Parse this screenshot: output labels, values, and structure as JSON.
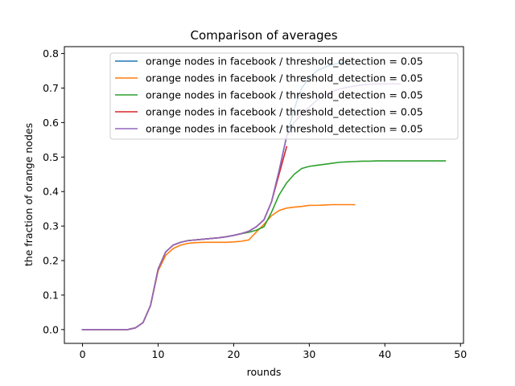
{
  "chart_data": {
    "type": "line",
    "title": "Comparison of averages",
    "xlabel": "rounds",
    "ylabel": "the fraction of orange nodes",
    "xlim": [
      -2.4,
      50.4
    ],
    "ylim": [
      -0.04,
      0.82
    ],
    "xticks": [
      0,
      10,
      20,
      30,
      40,
      50
    ],
    "yticks": [
      0.0,
      0.1,
      0.2,
      0.3,
      0.4,
      0.5,
      0.6,
      0.7,
      0.8
    ],
    "xtick_labels": [
      "0",
      "10",
      "20",
      "30",
      "40",
      "50"
    ],
    "ytick_labels": [
      "0.0",
      "0.1",
      "0.2",
      "0.3",
      "0.4",
      "0.5",
      "0.6",
      "0.7",
      "0.8"
    ],
    "grid": false,
    "legend_position": "top-right",
    "series": [
      {
        "name": "orange nodes in facebook / threshold_detection = 0.05",
        "color": "#1f77b4",
        "x": [
          0,
          1,
          2,
          3,
          4,
          5,
          6,
          7,
          8,
          9,
          10,
          11,
          12,
          13,
          14,
          15,
          16,
          17,
          18,
          19,
          20,
          21,
          22,
          23,
          24,
          25,
          26,
          27,
          28,
          29,
          30,
          31,
          32,
          33,
          34,
          35
        ],
        "y": [
          0,
          0,
          0,
          0,
          0,
          0,
          0,
          0.005,
          0.02,
          0.07,
          0.175,
          0.225,
          0.245,
          0.253,
          0.258,
          0.26,
          0.262,
          0.264,
          0.266,
          0.269,
          0.273,
          0.278,
          0.285,
          0.298,
          0.318,
          0.37,
          0.46,
          0.56,
          0.64,
          0.7,
          0.73,
          0.75,
          0.76,
          0.768,
          0.772,
          0.775
        ]
      },
      {
        "name": "orange nodes in facebook / threshold_detection = 0.05",
        "color": "#ff7f0e",
        "x": [
          0,
          1,
          2,
          3,
          4,
          5,
          6,
          7,
          8,
          9,
          10,
          11,
          12,
          13,
          14,
          15,
          16,
          17,
          18,
          19,
          20,
          21,
          22,
          23,
          24,
          25,
          26,
          27,
          28,
          29,
          30,
          31,
          32,
          33,
          34,
          35,
          36
        ],
        "y": [
          0,
          0,
          0,
          0,
          0,
          0,
          0,
          0.005,
          0.02,
          0.07,
          0.17,
          0.215,
          0.235,
          0.245,
          0.25,
          0.252,
          0.253,
          0.253,
          0.253,
          0.253,
          0.254,
          0.256,
          0.26,
          0.283,
          0.305,
          0.33,
          0.345,
          0.352,
          0.355,
          0.357,
          0.36,
          0.36,
          0.361,
          0.362,
          0.362,
          0.362,
          0.362
        ]
      },
      {
        "name": "orange nodes in facebook / threshold_detection = 0.05",
        "color": "#2ca02c",
        "x": [
          0,
          1,
          2,
          3,
          4,
          5,
          6,
          7,
          8,
          9,
          10,
          11,
          12,
          13,
          14,
          15,
          16,
          17,
          18,
          19,
          20,
          21,
          22,
          23,
          24,
          25,
          26,
          27,
          28,
          29,
          30,
          31,
          32,
          33,
          34,
          35,
          36,
          37,
          38,
          39,
          40,
          41,
          42,
          43,
          44,
          45,
          46,
          47,
          48
        ],
        "y": [
          0,
          0,
          0,
          0,
          0,
          0,
          0,
          0.005,
          0.02,
          0.07,
          0.175,
          0.225,
          0.245,
          0.253,
          0.258,
          0.26,
          0.262,
          0.264,
          0.266,
          0.269,
          0.273,
          0.278,
          0.282,
          0.288,
          0.298,
          0.34,
          0.39,
          0.425,
          0.45,
          0.467,
          0.473,
          0.476,
          0.479,
          0.482,
          0.485,
          0.486,
          0.487,
          0.488,
          0.488,
          0.489,
          0.489,
          0.489,
          0.489,
          0.489,
          0.489,
          0.489,
          0.489,
          0.489,
          0.489
        ]
      },
      {
        "name": "orange nodes in facebook / threshold_detection = 0.05",
        "color": "#d62728",
        "x": [
          0,
          1,
          2,
          3,
          4,
          5,
          6,
          7,
          8,
          9,
          10,
          11,
          12,
          13,
          14,
          15,
          16,
          17,
          18,
          19,
          20,
          21,
          22,
          23,
          24,
          25,
          26,
          27
        ],
        "y": [
          0,
          0,
          0,
          0,
          0,
          0,
          0,
          0.005,
          0.02,
          0.07,
          0.175,
          0.225,
          0.245,
          0.253,
          0.258,
          0.26,
          0.262,
          0.264,
          0.266,
          0.269,
          0.273,
          0.278,
          0.285,
          0.298,
          0.318,
          0.37,
          0.45,
          0.53
        ]
      },
      {
        "name": "orange nodes in facebook / threshold_detection = 0.05",
        "color": "#9467bd",
        "x": [
          0,
          1,
          2,
          3,
          4,
          5,
          6,
          7,
          8,
          9,
          10,
          11,
          12,
          13,
          14,
          15,
          16,
          17,
          18,
          19,
          20,
          21,
          22,
          23,
          24,
          25,
          26,
          27,
          28,
          29,
          30,
          31,
          32,
          33,
          34,
          35,
          36,
          37,
          38,
          39,
          40,
          41,
          42
        ],
        "y": [
          0,
          0,
          0,
          0,
          0,
          0,
          0,
          0.005,
          0.02,
          0.07,
          0.175,
          0.225,
          0.245,
          0.253,
          0.258,
          0.26,
          0.262,
          0.264,
          0.266,
          0.269,
          0.273,
          0.278,
          0.285,
          0.298,
          0.318,
          0.37,
          0.46,
          0.56,
          0.6,
          0.625,
          0.645,
          0.665,
          0.68,
          0.69,
          0.697,
          0.702,
          0.706,
          0.709,
          0.711,
          0.712,
          0.712,
          0.712,
          0.712
        ]
      }
    ]
  }
}
